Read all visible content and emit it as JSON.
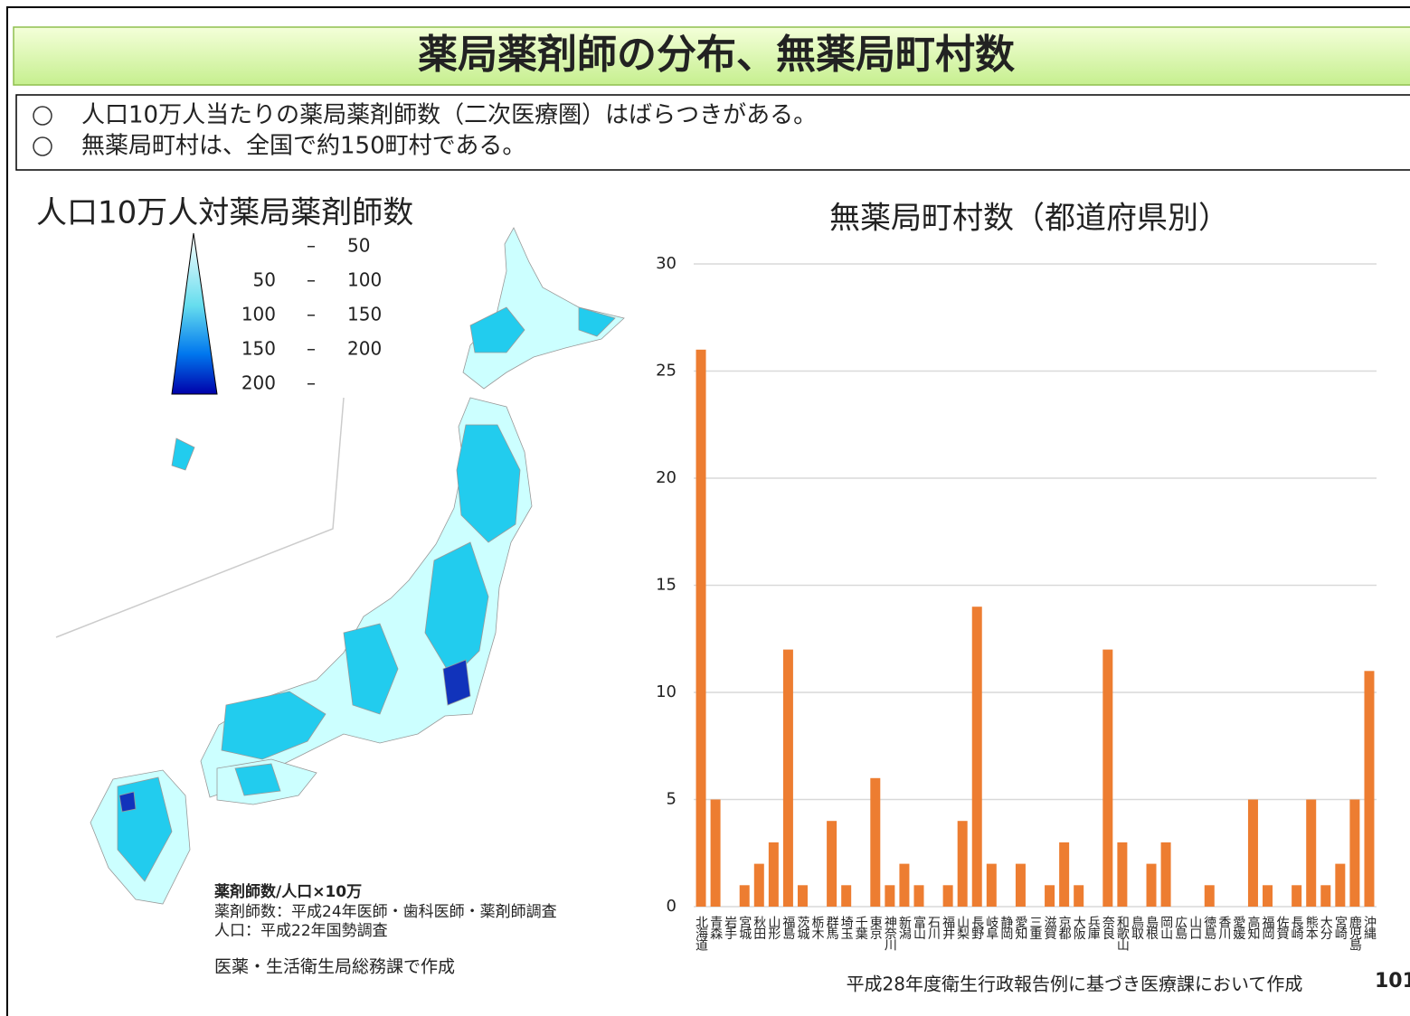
{
  "header": {
    "title": "薬局薬剤師の分布、無薬局町村数"
  },
  "bullets": [
    "人口10万人当たりの薬局薬剤師数（二次医療圏）はばらつきがある。",
    "無薬局町村は、全国で約150町村である。"
  ],
  "map": {
    "title": "人口10万人対薬局薬剤師数",
    "legend": {
      "separator": "–",
      "items": [
        {
          "to": 50
        },
        {
          "from": 50,
          "to": 100
        },
        {
          "from": 100,
          "to": 150
        },
        {
          "from": 150,
          "to": 200
        },
        {
          "from": 200
        }
      ]
    },
    "notes": [
      "薬剤師数/人口×10万",
      "薬剤師数：平成24年医師・歯科医師・薬剤師調査",
      "人口：平成22年国勢調査"
    ],
    "credit": "医薬・生活衛生局総務課で作成"
  },
  "chart_data": {
    "type": "bar",
    "title": "無薬局町村数（都道府県別）",
    "categories": [
      "北海道",
      "青森",
      "岩手",
      "宮城",
      "秋田",
      "山形",
      "福島",
      "茨城",
      "栃木",
      "群馬",
      "埼玉",
      "千葉",
      "東京",
      "神奈川",
      "新潟",
      "富山",
      "石川",
      "福井",
      "山梨",
      "長野",
      "岐阜",
      "静岡",
      "愛知",
      "三重",
      "滋賀",
      "京都",
      "大阪",
      "兵庫",
      "奈良",
      "和歌山",
      "鳥取",
      "島根",
      "岡山",
      "広島",
      "山口",
      "徳島",
      "香川",
      "愛媛",
      "高知",
      "福岡",
      "佐賀",
      "長崎",
      "熊本",
      "大分",
      "宮崎",
      "鹿児島",
      "沖縄"
    ],
    "values": [
      26,
      5,
      0,
      1,
      2,
      3,
      12,
      1,
      0,
      4,
      1,
      0,
      6,
      1,
      2,
      1,
      0,
      1,
      4,
      14,
      2,
      0,
      2,
      0,
      1,
      3,
      1,
      0,
      12,
      3,
      0,
      2,
      3,
      0,
      0,
      1,
      0,
      0,
      5,
      1,
      0,
      1,
      5,
      1,
      2,
      5,
      11
    ],
    "color": "#ed7d31",
    "ylim": [
      0,
      30
    ],
    "yticks": [
      0,
      5,
      10,
      15,
      20,
      25,
      30
    ],
    "grid": true
  },
  "source": "平成28年度衛生行政報告例に基づき医療課において作成",
  "page_number": "101"
}
